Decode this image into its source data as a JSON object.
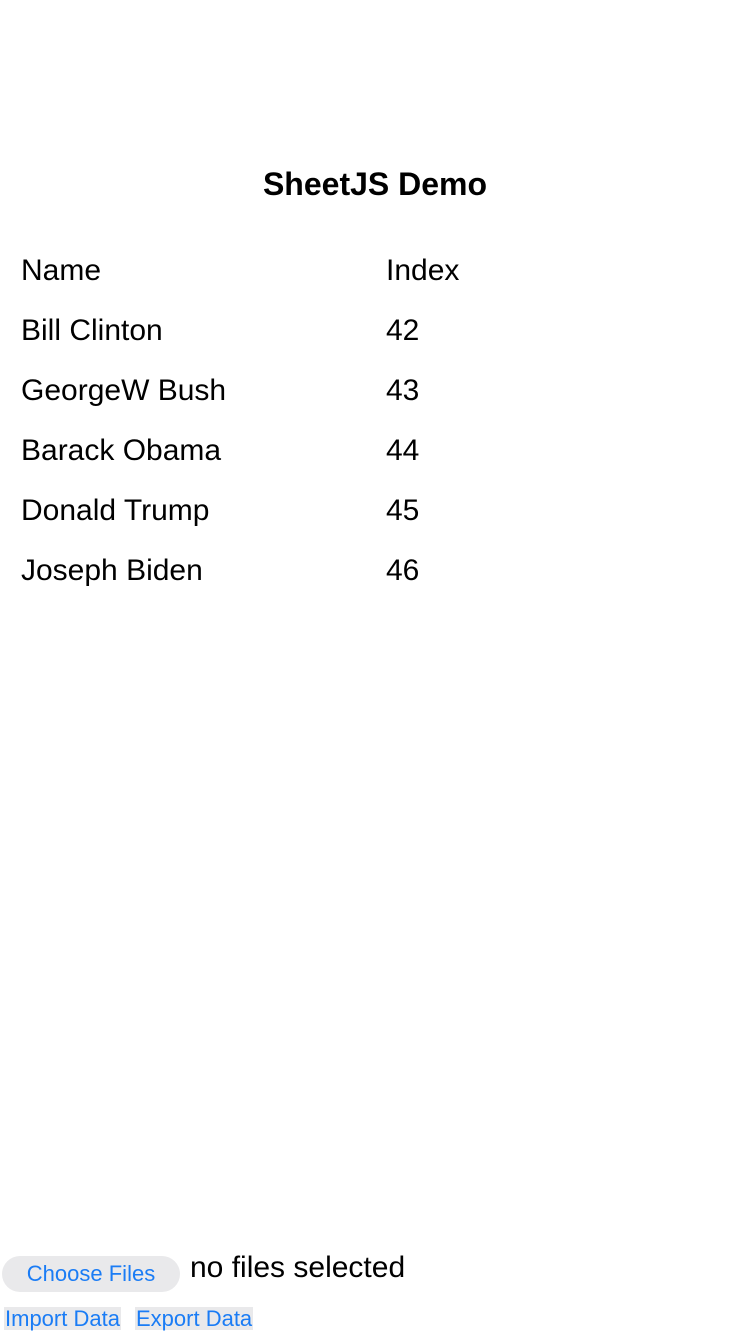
{
  "title": "SheetJS Demo",
  "table": {
    "headers": [
      "Name",
      "Index"
    ],
    "rows": [
      [
        "Bill Clinton",
        "42"
      ],
      [
        "GeorgeW Bush",
        "43"
      ],
      [
        "Barack Obama",
        "44"
      ],
      [
        "Donald Trump",
        "45"
      ],
      [
        "Joseph Biden",
        "46"
      ]
    ]
  },
  "file_input": {
    "button": "Choose Files",
    "status": "no files selected"
  },
  "actions": {
    "import": "Import Data",
    "export": "Export Data"
  },
  "colors": {
    "accent": "#1a7cf5",
    "button_bg": "#e9e9eb"
  }
}
